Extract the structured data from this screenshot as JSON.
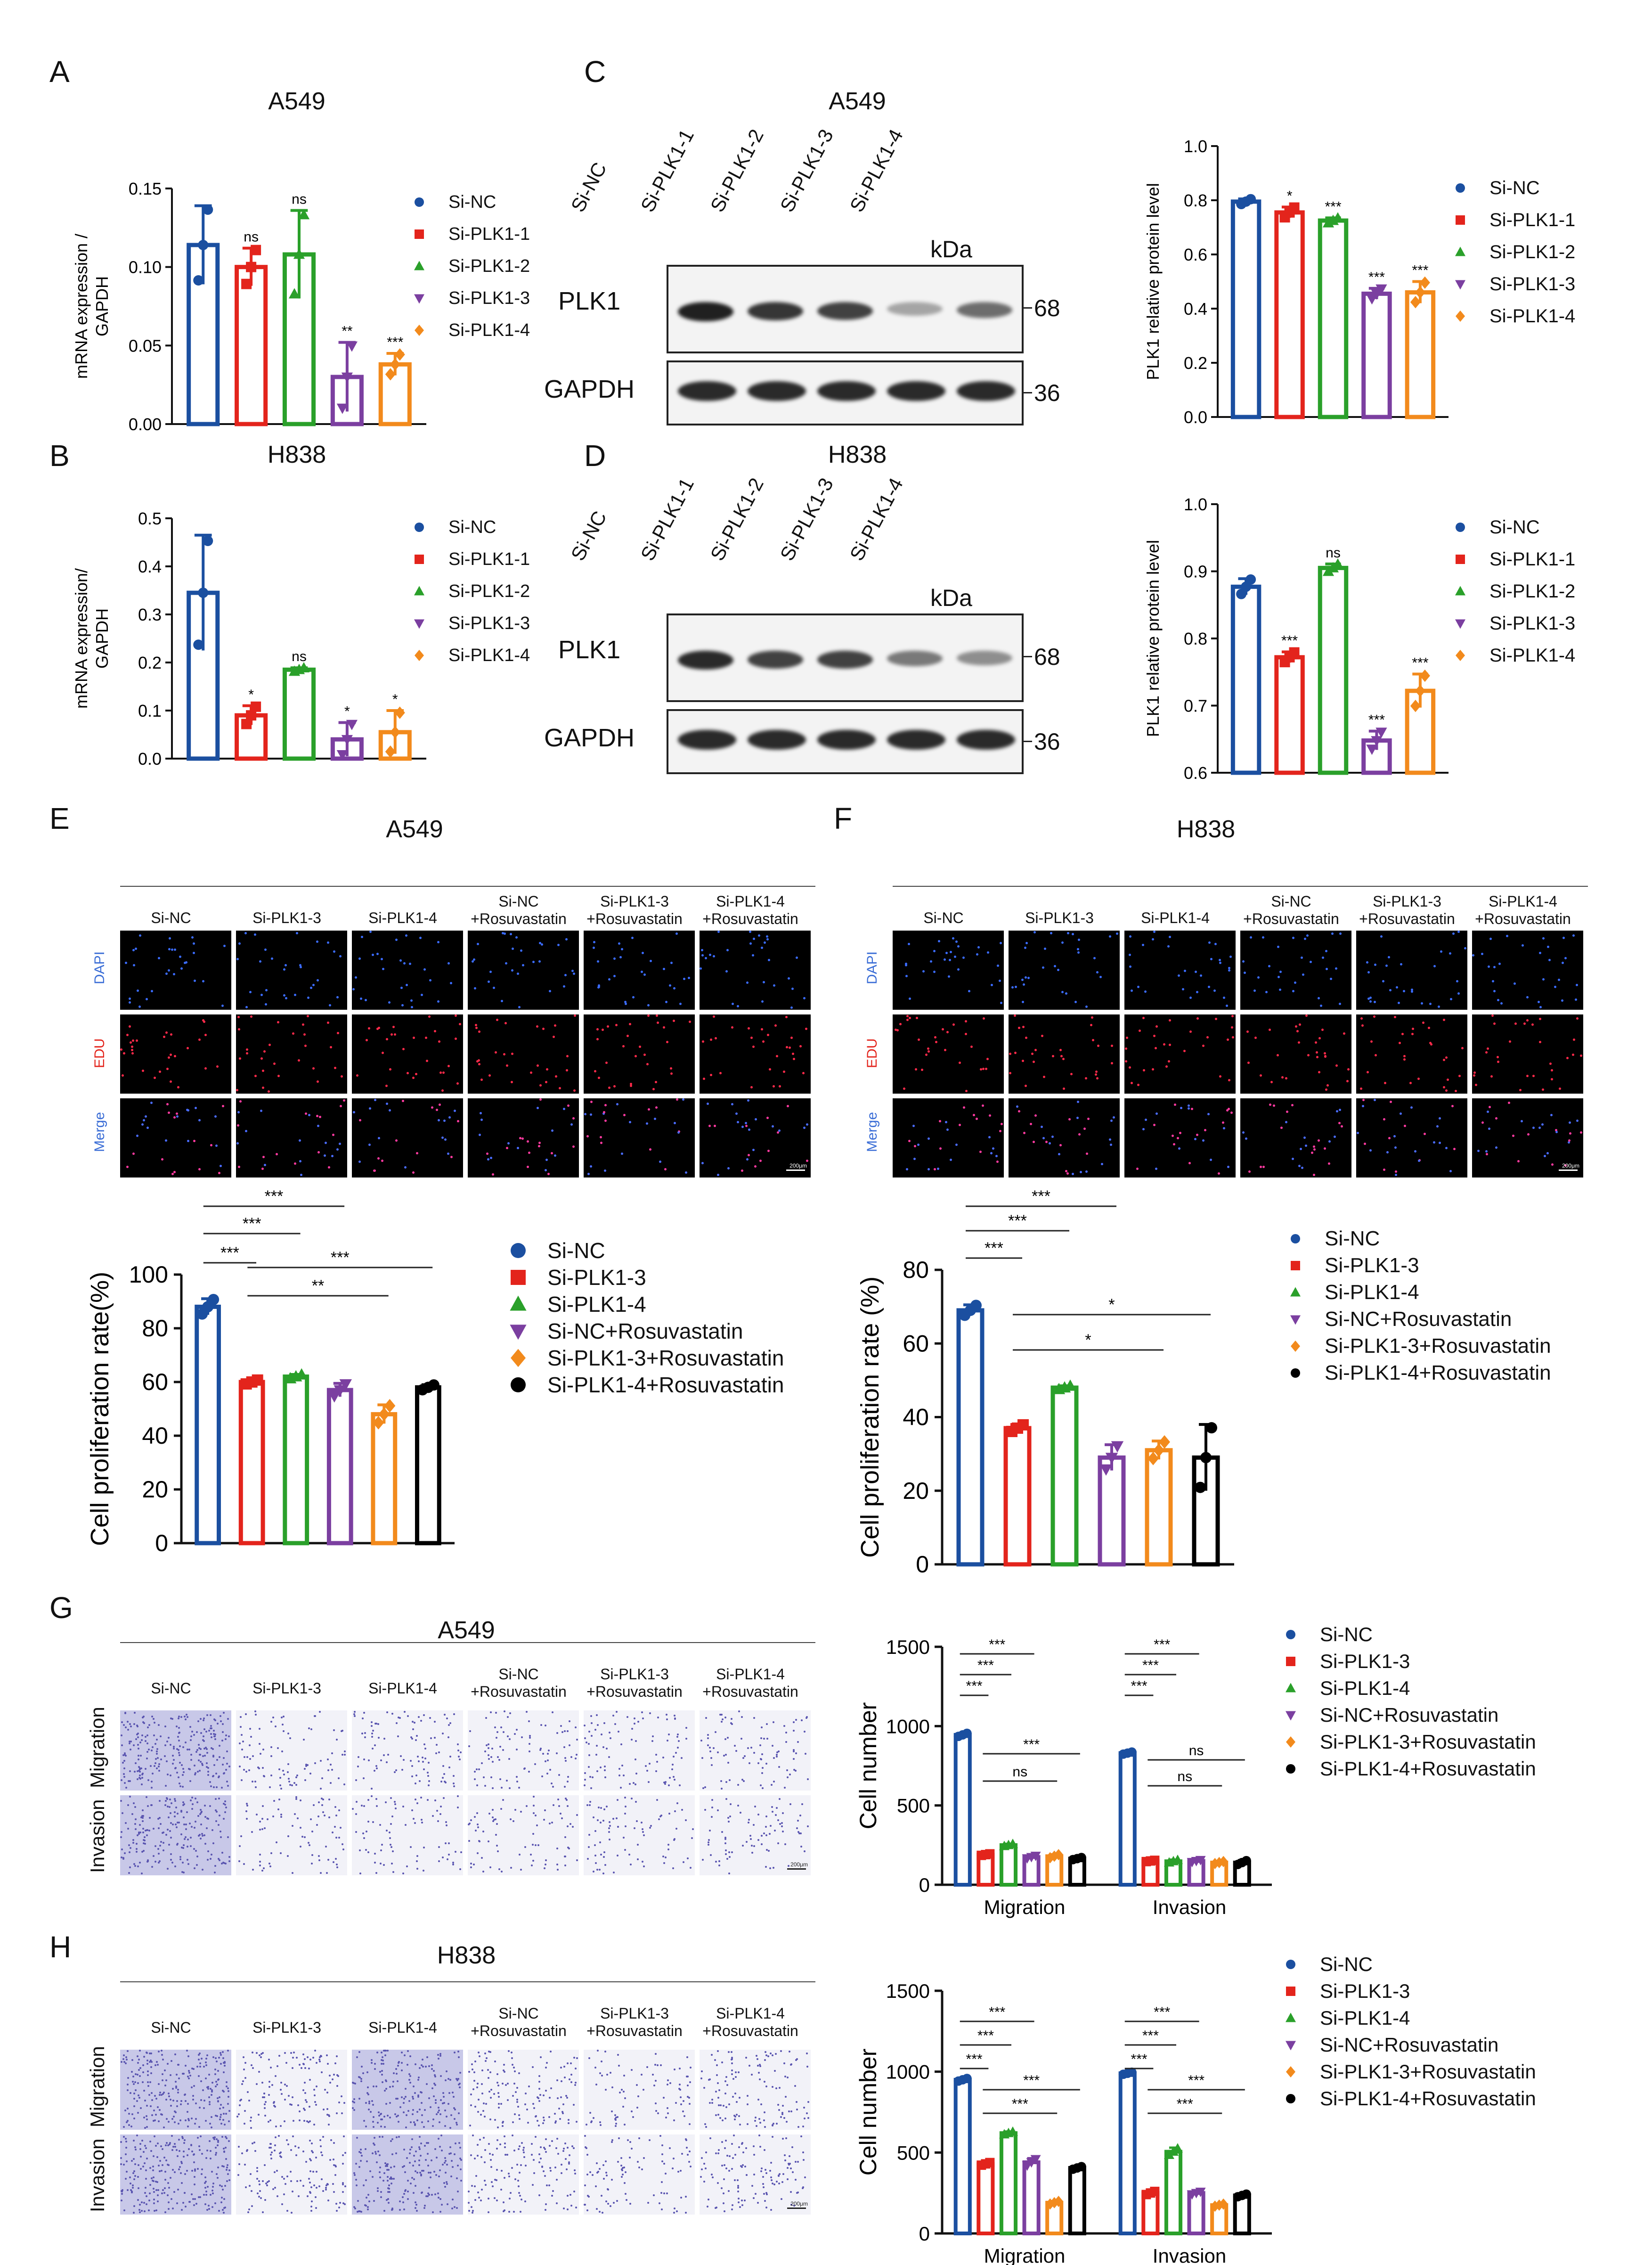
{
  "colors": {
    "Si-NC": "#1b4fa0",
    "Si-PLK1-1": "#e3241c",
    "Si-PLK1-2": "#2aa02a",
    "Si-PLK1-3": "#7b3fa0",
    "Si-PLK1-4": "#f28a1c",
    "Si-PLK1-3b": "#e3241c",
    "Si-PLK1-4b": "#2aa02a",
    "Si-NC+Rosuvastatin": "#7b3fa0",
    "Si-PLK1-3+Rosuvastatin": "#f28a1c",
    "Si-PLK1-4+Rosuvastatin": "#000000"
  },
  "panels": {
    "A": {
      "letter": "A",
      "title": "A549"
    },
    "B": {
      "letter": "B",
      "title": "H838"
    },
    "C": {
      "letter": "C",
      "title": "A549"
    },
    "D": {
      "letter": "D",
      "title": "H838"
    },
    "E": {
      "letter": "E",
      "title": "A549"
    },
    "F": {
      "letter": "F",
      "title": "H838"
    },
    "G": {
      "letter": "G",
      "title": "A549"
    },
    "H": {
      "letter": "H",
      "title": "H838"
    }
  },
  "legend5": [
    "Si-NC",
    "Si-PLK1-1",
    "Si-PLK1-2",
    "Si-PLK1-3",
    "Si-PLK1-4"
  ],
  "legend6": [
    "Si-NC",
    "Si-PLK1-3",
    "Si-PLK1-4",
    "Si-NC+Rosuvastatin",
    "Si-PLK1-3+Rosuvastatin",
    "Si-PLK1-4+Rosuvastatin"
  ],
  "blot": {
    "lanes": [
      "Si-NC",
      "Si-PLK1-1",
      "Si-PLK1-2",
      "Si-PLK1-3",
      "Si-PLK1-4"
    ],
    "kda": "kDa",
    "plk1": "PLK1",
    "gapdh": "GAPDH",
    "mw_plk1": "68",
    "mw_gapdh": "36"
  },
  "micro": {
    "cols": [
      "Si-NC",
      "Si-PLK1-3",
      "Si-PLK1-4",
      "Si-NC\n+Rosuvastatin",
      "Si-PLK1-3\n+Rosuvastatin",
      "Si-PLK1-4\n+Rosuvastatin"
    ],
    "rows_fluor": [
      "DAPI",
      "EDU",
      "Merge"
    ],
    "rows_transwell": [
      "Migration",
      "Invasion"
    ],
    "scale": "200μm"
  },
  "chart_data": [
    {
      "id": "A",
      "type": "bar",
      "title": "A549",
      "ylabel": "mRNA expression / GAPDH",
      "ylim": [
        0,
        0.15
      ],
      "yticks": [
        "0.00",
        "0.05",
        "0.10",
        "0.15"
      ],
      "categories": [
        "Si-NC",
        "Si-PLK1-1",
        "Si-PLK1-2",
        "Si-PLK1-3",
        "Si-PLK1-4"
      ],
      "values": [
        0.114,
        0.1,
        0.108,
        0.03,
        0.038
      ],
      "errors": [
        0.025,
        0.012,
        0.028,
        0.022,
        0.007
      ],
      "significance": [
        "",
        "ns",
        "ns",
        "**",
        "***"
      ]
    },
    {
      "id": "B",
      "type": "bar",
      "title": "H838",
      "ylabel": "mRNA expression/ GAPDH",
      "ylim": [
        0,
        0.5
      ],
      "yticks": [
        "0.0",
        "0.1",
        "0.2",
        "0.3",
        "0.4",
        "0.5"
      ],
      "categories": [
        "Si-NC",
        "Si-PLK1-1",
        "Si-PLK1-2",
        "Si-PLK1-3",
        "Si-PLK1-4"
      ],
      "values": [
        0.345,
        0.09,
        0.185,
        0.04,
        0.055
      ],
      "errors": [
        0.12,
        0.02,
        0.004,
        0.035,
        0.045
      ],
      "significance": [
        "",
        "*",
        "ns",
        "*",
        "*"
      ]
    },
    {
      "id": "C",
      "type": "bar",
      "ylabel": "PLK1 relative protein level",
      "ylim": [
        0,
        1.0
      ],
      "yticks": [
        "0.0",
        "0.2",
        "0.4",
        "0.6",
        "0.8",
        "1.0"
      ],
      "categories": [
        "Si-NC",
        "Si-PLK1-1",
        "Si-PLK1-2",
        "Si-PLK1-3",
        "Si-PLK1-4"
      ],
      "values": [
        0.795,
        0.755,
        0.725,
        0.455,
        0.46
      ],
      "errors": [
        0.01,
        0.02,
        0.01,
        0.02,
        0.04
      ],
      "significance": [
        "",
        "*",
        "***",
        "***",
        "***"
      ]
    },
    {
      "id": "D",
      "type": "bar",
      "ylabel": "PLK1 relative protein level",
      "ylim": [
        0.6,
        1.0
      ],
      "yticks": [
        "0.6",
        "0.7",
        "0.8",
        "0.9",
        "1.0"
      ],
      "categories": [
        "Si-NC",
        "Si-PLK1-1",
        "Si-PLK1-2",
        "Si-PLK1-3",
        "Si-PLK1-4"
      ],
      "values": [
        0.877,
        0.772,
        0.905,
        0.648,
        0.722
      ],
      "errors": [
        0.012,
        0.008,
        0.006,
        0.014,
        0.025
      ],
      "significance": [
        "",
        "***",
        "ns",
        "***",
        "***"
      ]
    },
    {
      "id": "E",
      "type": "bar",
      "ylabel": "Cell proliferation rate(%)",
      "ylim": [
        0,
        100
      ],
      "yticks": [
        "0",
        "20",
        "40",
        "60",
        "80",
        "100"
      ],
      "categories": [
        "Si-NC",
        "Si-PLK1-3",
        "Si-PLK1-4",
        "Si-NC+Rosuvastatin",
        "Si-PLK1-3+Rosuvastatin",
        "Si-PLK1-4+Rosuvastatin"
      ],
      "values": [
        88,
        60,
        62,
        57,
        48,
        58
      ],
      "errors": [
        3,
        0.8,
        0.8,
        2.5,
        3.5,
        1
      ],
      "brackets": [
        [
          "Si-NC",
          "Si-PLK1-3",
          "***"
        ],
        [
          "Si-NC",
          "Si-PLK1-4",
          "***"
        ],
        [
          "Si-NC",
          "Si-NC+Rosuvastatin",
          "***"
        ],
        [
          "Si-PLK1-3",
          "Si-PLK1-3+Rosuvastatin",
          "**"
        ],
        [
          "Si-PLK1-3",
          "Si-PLK1-4+Rosuvastatin",
          "***"
        ]
      ]
    },
    {
      "id": "F",
      "type": "bar",
      "ylabel": "Cell proliferation rate  (%)",
      "ylim": [
        0,
        80
      ],
      "yticks": [
        "0",
        "20",
        "40",
        "60",
        "80"
      ],
      "categories": [
        "Si-NC",
        "Si-PLK1-3",
        "Si-PLK1-4",
        "Si-NC+Rosuvastatin",
        "Si-PLK1-3+Rosuvastatin",
        "Si-PLK1-4+Rosuvastatin"
      ],
      "values": [
        69,
        37,
        48,
        29,
        31,
        29
      ],
      "errors": [
        1.5,
        1,
        0.5,
        3.5,
        2.5,
        9
      ],
      "brackets": [
        [
          "Si-NC",
          "Si-PLK1-3",
          "***"
        ],
        [
          "Si-NC",
          "Si-PLK1-4",
          "***"
        ],
        [
          "Si-NC",
          "Si-NC+Rosuvastatin",
          "***"
        ],
        [
          "Si-PLK1-3",
          "Si-PLK1-3+Rosuvastatin",
          "*"
        ],
        [
          "Si-PLK1-3",
          "Si-PLK1-4+Rosuvastatin",
          "*"
        ]
      ]
    },
    {
      "id": "G",
      "type": "bar",
      "ylabel": "Cell number",
      "ylim": [
        0,
        1500
      ],
      "yticks": [
        "0",
        "500",
        "1000",
        "1500"
      ],
      "categories": [
        "Migration",
        "Invasion"
      ],
      "series": [
        {
          "name": "Si-NC",
          "values": [
            945,
            830
          ],
          "errors": [
            12,
            8
          ]
        },
        {
          "name": "Si-PLK1-3",
          "values": [
            190,
            150
          ],
          "errors": [
            6,
            5
          ]
        },
        {
          "name": "Si-PLK1-4",
          "values": [
            250,
            148
          ],
          "errors": [
            8,
            10
          ]
        },
        {
          "name": "Si-NC+Rosuvastatin",
          "values": [
            175,
            150
          ],
          "errors": [
            10,
            8
          ]
        },
        {
          "name": "Si-PLK1-3+Rosuvastatin",
          "values": [
            180,
            140
          ],
          "errors": [
            12,
            8
          ]
        },
        {
          "name": "Si-PLK1-4+Rosuvastatin",
          "values": [
            165,
            140
          ],
          "errors": [
            8,
            15
          ]
        }
      ],
      "brackets": [
        [
          "Migration",
          "Si-NC",
          "Si-PLK1-3",
          "***"
        ],
        [
          "Migration",
          "Si-NC",
          "Si-PLK1-4",
          "***"
        ],
        [
          "Migration",
          "Si-NC",
          "Si-NC+Rosuvastatin",
          "***"
        ],
        [
          "Migration",
          "Si-PLK1-3",
          "Si-PLK1-3+Rosuvastatin",
          "ns"
        ],
        [
          "Migration",
          "Si-PLK1-3",
          "Si-PLK1-4+Rosuvastatin",
          "***"
        ],
        [
          "Invasion",
          "Si-NC",
          "Si-PLK1-3",
          "***"
        ],
        [
          "Invasion",
          "Si-NC",
          "Si-PLK1-4",
          "***"
        ],
        [
          "Invasion",
          "Si-NC",
          "Si-NC+Rosuvastatin",
          "***"
        ],
        [
          "Invasion",
          "Si-PLK1-3",
          "Si-PLK1-3+Rosuvastatin",
          "ns"
        ],
        [
          "Invasion",
          "Si-PLK1-3",
          "Si-PLK1-4+Rosuvastatin",
          "ns"
        ]
      ]
    },
    {
      "id": "H",
      "type": "bar",
      "ylabel": "Cell number",
      "ylim": [
        0,
        1500
      ],
      "yticks": [
        "0",
        "500",
        "1000",
        "1500"
      ],
      "categories": [
        "Migration",
        "Invasion"
      ],
      "series": [
        {
          "name": "Si-NC",
          "values": [
            950,
            990
          ],
          "errors": [
            10,
            8
          ]
        },
        {
          "name": "Si-PLK1-3",
          "values": [
            430,
            250
          ],
          "errors": [
            10,
            12
          ]
        },
        {
          "name": "Si-PLK1-4",
          "values": [
            620,
            505
          ],
          "errors": [
            10,
            25
          ]
        },
        {
          "name": "Si-NC+Rosuvastatin",
          "values": [
            440,
            250
          ],
          "errors": [
            25,
            10
          ]
        },
        {
          "name": "Si-PLK1-3+Rosuvastatin",
          "values": [
            190,
            175
          ],
          "errors": [
            10,
            8
          ]
        },
        {
          "name": "Si-PLK1-4+Rosuvastatin",
          "values": [
            405,
            235
          ],
          "errors": [
            10,
            10
          ]
        }
      ],
      "brackets": [
        [
          "Migration",
          "Si-NC",
          "Si-PLK1-3",
          "***"
        ],
        [
          "Migration",
          "Si-NC",
          "Si-PLK1-4",
          "***"
        ],
        [
          "Migration",
          "Si-NC",
          "Si-NC+Rosuvastatin",
          "***"
        ],
        [
          "Migration",
          "Si-PLK1-3",
          "Si-PLK1-3+Rosuvastatin",
          "***"
        ],
        [
          "Migration",
          "Si-PLK1-3",
          "Si-PLK1-4+Rosuvastatin",
          "***"
        ],
        [
          "Invasion",
          "Si-NC",
          "Si-PLK1-3",
          "***"
        ],
        [
          "Invasion",
          "Si-NC",
          "Si-PLK1-4",
          "***"
        ],
        [
          "Invasion",
          "Si-NC",
          "Si-NC+Rosuvastatin",
          "***"
        ],
        [
          "Invasion",
          "Si-PLK1-3",
          "Si-PLK1-3+Rosuvastatin",
          "***"
        ],
        [
          "Invasion",
          "Si-PLK1-3",
          "Si-PLK1-4+Rosuvastatin",
          "***"
        ]
      ]
    }
  ]
}
